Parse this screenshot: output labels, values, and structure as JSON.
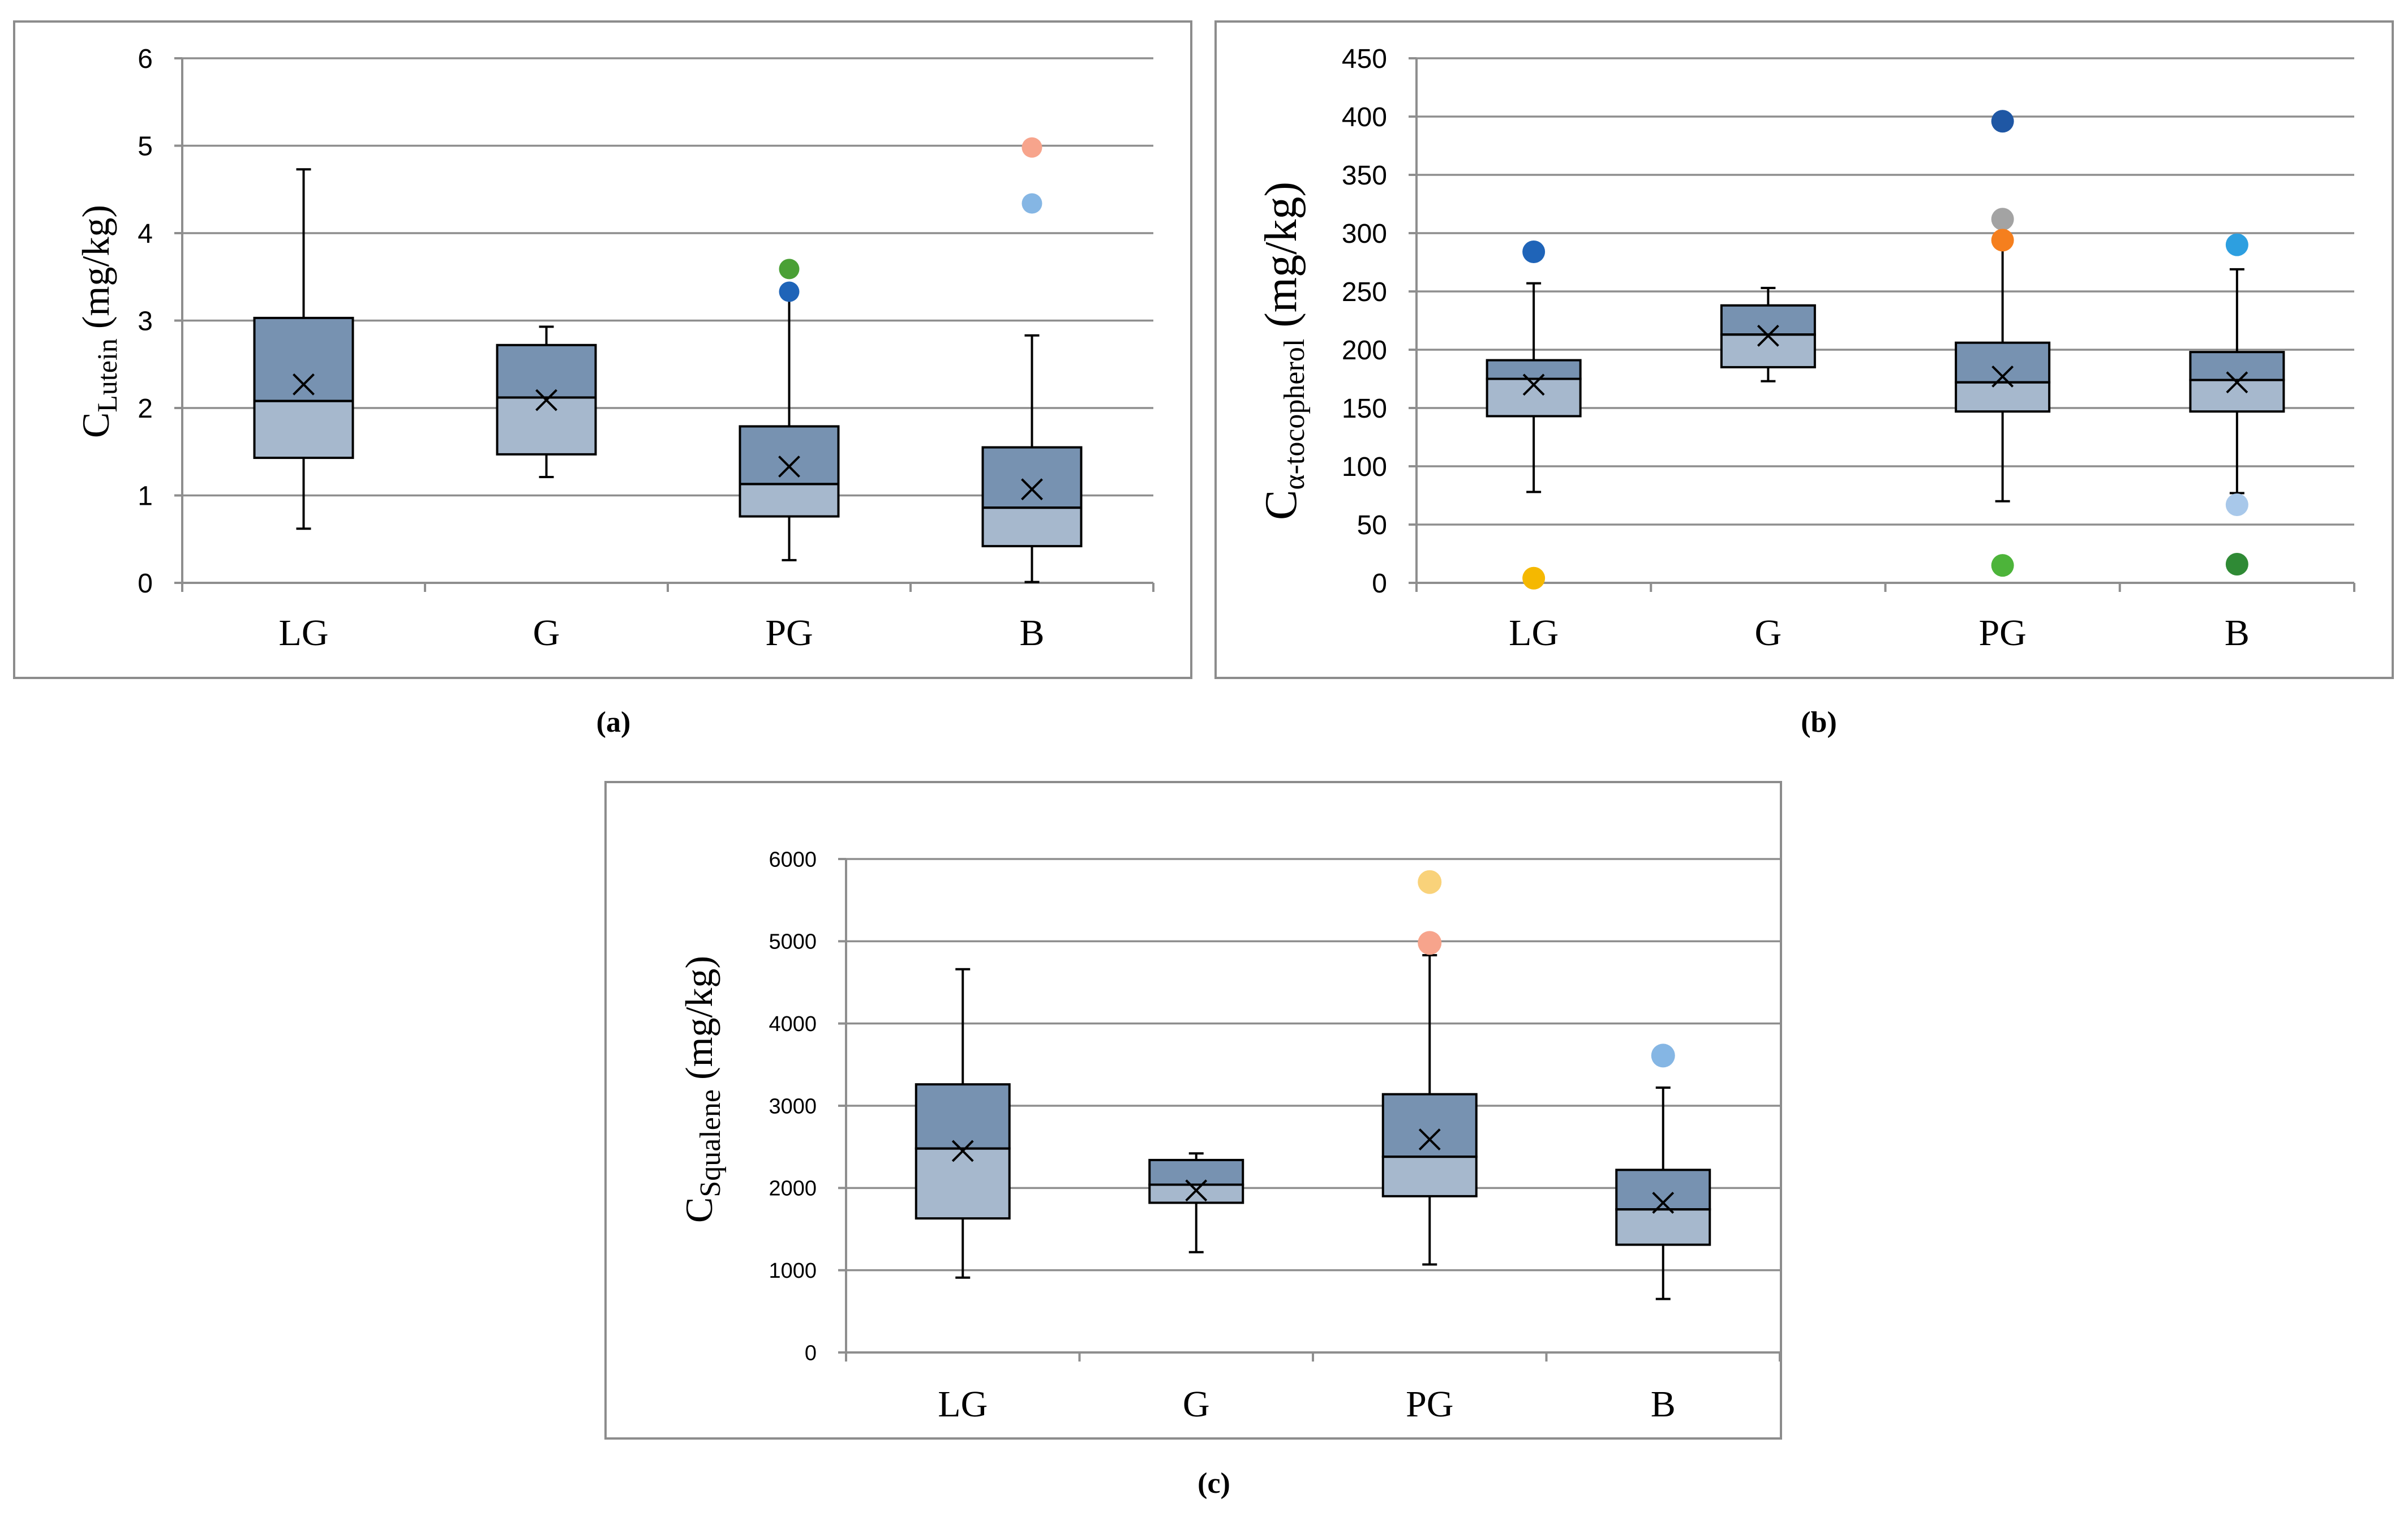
{
  "chart_data": [
    {
      "type": "boxplot",
      "panel_label": "(a)",
      "ylabel": "C",
      "ylabel_sub": "Lutein",
      "ylabel_unit": " (mg/kg)",
      "xlabel": "",
      "ylim": [
        0,
        6
      ],
      "yticks": [
        0,
        1,
        2,
        3,
        4,
        5,
        6
      ],
      "ytick_labels": [
        "0",
        "1",
        "2",
        "3",
        "4",
        "5",
        "6"
      ],
      "grid": true,
      "categories": [
        "LG",
        "G",
        "PG",
        "B"
      ],
      "boxes": [
        {
          "category": "LG",
          "min": 0.62,
          "q1": 1.43,
          "median": 2.08,
          "q3": 3.03,
          "max": 4.73,
          "mean": 2.27
        },
        {
          "category": "G",
          "min": 1.21,
          "q1": 1.47,
          "median": 2.12,
          "q3": 2.72,
          "max": 2.93,
          "mean": 2.09
        },
        {
          "category": "PG",
          "min": 0.26,
          "q1": 0.76,
          "median": 1.13,
          "q3": 1.79,
          "max": 3.33,
          "mean": 1.33
        },
        {
          "category": "B",
          "min": 0.01,
          "q1": 0.42,
          "median": 0.86,
          "q3": 1.55,
          "max": 2.83,
          "mean": 1.07
        }
      ],
      "outliers": [
        {
          "category": "PG",
          "value": 3.59,
          "color": "#4aa035"
        },
        {
          "category": "PG",
          "value": 3.33,
          "color": "#1f64b8"
        },
        {
          "category": "B",
          "value": 4.98,
          "color": "#f7a48c"
        },
        {
          "category": "B",
          "value": 4.34,
          "color": "#85b6e4"
        }
      ]
    },
    {
      "type": "boxplot",
      "panel_label": "(b)",
      "ylabel": "C",
      "ylabel_sub": "α-tocopherol",
      "ylabel_unit": " (mg/kg)",
      "xlabel": "",
      "ylim": [
        0,
        450
      ],
      "yticks": [
        0,
        50,
        100,
        150,
        200,
        250,
        300,
        350,
        400,
        450
      ],
      "ytick_labels": [
        "0",
        "50",
        "100",
        "150",
        "200",
        "250",
        "300",
        "350",
        "400",
        "450"
      ],
      "grid": true,
      "categories": [
        "LG",
        "G",
        "PG",
        "B"
      ],
      "boxes": [
        {
          "category": "LG",
          "min": 78,
          "q1": 143,
          "median": 175,
          "q3": 191,
          "max": 257,
          "mean": 170
        },
        {
          "category": "G",
          "min": 173,
          "q1": 185,
          "median": 213,
          "q3": 238,
          "max": 253,
          "mean": 212
        },
        {
          "category": "PG",
          "min": 70,
          "q1": 147,
          "median": 172,
          "q3": 206,
          "max": 292,
          "mean": 177
        },
        {
          "category": "B",
          "min": 77,
          "q1": 147,
          "median": 174,
          "q3": 198,
          "max": 269,
          "mean": 172
        }
      ],
      "outliers": [
        {
          "category": "LG",
          "value": 284,
          "color": "#1f64b8"
        },
        {
          "category": "LG",
          "value": 4,
          "color": "#f5b800"
        },
        {
          "category": "PG",
          "value": 396,
          "color": "#1f57a4"
        },
        {
          "category": "PG",
          "value": 312,
          "color": "#a3a3a3"
        },
        {
          "category": "PG",
          "value": 294,
          "color": "#f57f1e"
        },
        {
          "category": "PG",
          "value": 15,
          "color": "#4db43a"
        },
        {
          "category": "B",
          "value": 290,
          "color": "#2d9fe0"
        },
        {
          "category": "B",
          "value": 67,
          "color": "#a8c8ea"
        },
        {
          "category": "B",
          "value": 16,
          "color": "#2f8a35"
        }
      ]
    },
    {
      "type": "boxplot",
      "panel_label": "(c)",
      "ylabel": "C",
      "ylabel_sub": "Squalene",
      "ylabel_unit": " (mg/kg)",
      "xlabel": "",
      "ylim": [
        0,
        6000
      ],
      "yticks": [
        0,
        1000,
        2000,
        3000,
        4000,
        5000,
        6000
      ],
      "ytick_labels": [
        "0",
        "1000",
        "2000",
        "3000",
        "4000",
        "5000",
        "6000"
      ],
      "grid": true,
      "categories": [
        "LG",
        "G",
        "PG",
        "B"
      ],
      "boxes": [
        {
          "category": "LG",
          "min": 910,
          "q1": 1630,
          "median": 2480,
          "q3": 3260,
          "max": 4660,
          "mean": 2450
        },
        {
          "category": "G",
          "min": 1220,
          "q1": 1820,
          "median": 2040,
          "q3": 2340,
          "max": 2420,
          "mean": 1970
        },
        {
          "category": "PG",
          "min": 1070,
          "q1": 1900,
          "median": 2380,
          "q3": 3140,
          "max": 4830,
          "mean": 2590
        },
        {
          "category": "B",
          "min": 650,
          "q1": 1310,
          "median": 1740,
          "q3": 2220,
          "max": 3220,
          "mean": 1820
        }
      ],
      "outliers": [
        {
          "category": "PG",
          "value": 5720,
          "color": "#f9d27a"
        },
        {
          "category": "PG",
          "value": 4980,
          "color": "#f7a48c"
        },
        {
          "category": "B",
          "value": 3610,
          "color": "#85b6e4"
        }
      ]
    }
  ]
}
